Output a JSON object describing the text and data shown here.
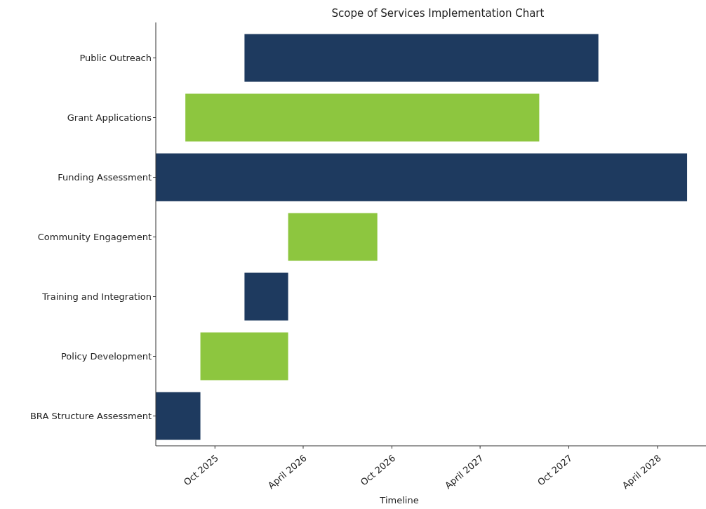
{
  "chart_data": {
    "type": "bar",
    "orientation": "horizontal",
    "title": "Scope of Services Implementation Chart",
    "xlabel": "Timeline",
    "categories": [
      "Public Outreach",
      "Grant Applications",
      "Funding Assessment",
      "Community Engagement",
      "Training and Integration",
      "Policy Development",
      "BRA Structure Assessment"
    ],
    "base": [
      20423,
      20301,
      20240,
      20513,
      20423,
      20332,
      20240
    ],
    "values": [
      730,
      730,
      1096,
      184,
      90,
      181,
      92
    ],
    "colors": [
      "#1e3a5f",
      "#8dc63f",
      "#1e3a5f",
      "#8dc63f",
      "#1e3a5f",
      "#8dc63f",
      "#1e3a5f"
    ],
    "xlim": [
      "2025-06-01",
      "2028-07-10"
    ],
    "xticks": [
      {
        "value": "2025-10-01",
        "label": "Oct 2025"
      },
      {
        "value": "2026-04-01",
        "label": "April 2026"
      },
      {
        "value": "2026-10-01",
        "label": "Oct 2026"
      },
      {
        "value": "2027-04-01",
        "label": "April 2027"
      },
      {
        "value": "2027-10-01",
        "label": "Oct 2027"
      },
      {
        "value": "2028-04-01",
        "label": "April 2028"
      }
    ]
  }
}
